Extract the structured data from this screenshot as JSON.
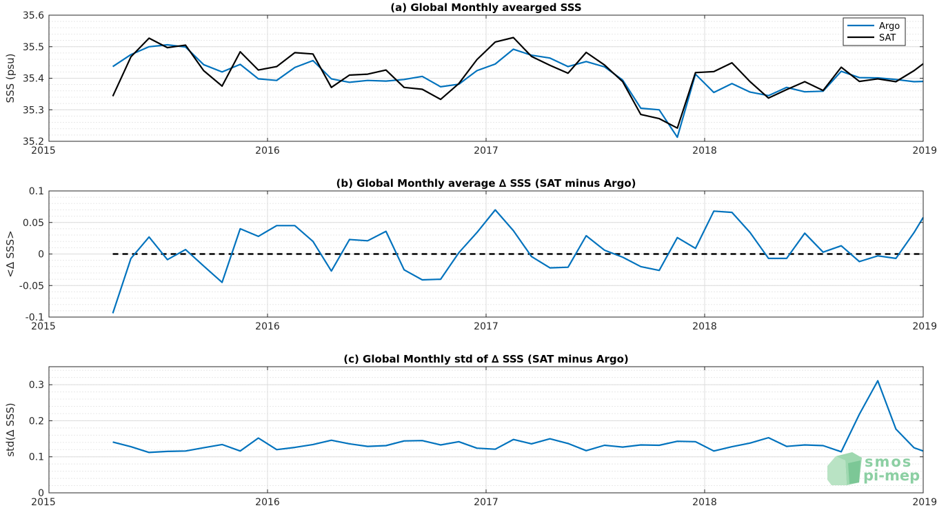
{
  "chart_data": [
    {
      "type": "line",
      "title": "(a) Global Monthly avearged SSS",
      "xlabel": "",
      "ylabel": "SSS (psu)",
      "xlim": [
        2015,
        2019
      ],
      "ylim": [
        35.2,
        35.6
      ],
      "xticks": [
        2015,
        2016,
        2017,
        2018,
        2019
      ],
      "xticklabels": [
        "2015",
        "2016",
        "2017",
        "2018",
        "2019"
      ],
      "yticks": [
        35.2,
        35.3,
        35.4,
        35.5,
        35.6
      ],
      "yticklabels": [
        "35.2",
        "35.3",
        "35.4",
        "35.5",
        "35.6"
      ],
      "grid": true,
      "legend_position": "top-right",
      "x": [
        2015.292,
        2015.375,
        2015.458,
        2015.542,
        2015.625,
        2015.708,
        2015.792,
        2015.875,
        2015.958,
        2016.042,
        2016.125,
        2016.208,
        2016.292,
        2016.375,
        2016.458,
        2016.542,
        2016.625,
        2016.708,
        2016.792,
        2016.875,
        2016.958,
        2017.042,
        2017.125,
        2017.208,
        2017.292,
        2017.375,
        2017.458,
        2017.542,
        2017.625,
        2017.708,
        2017.792,
        2017.875,
        2017.958,
        2018.042,
        2018.125,
        2018.208,
        2018.292,
        2018.375,
        2018.458,
        2018.542,
        2018.625,
        2018.708,
        2018.792,
        2018.875,
        2018.958,
        2019.0
      ],
      "series": [
        {
          "name": "Argo",
          "color": "#0072bd",
          "values": [
            35.437,
            35.475,
            35.5,
            35.506,
            35.499,
            35.443,
            35.42,
            35.444,
            35.398,
            35.393,
            35.434,
            35.456,
            35.398,
            35.387,
            35.393,
            35.391,
            35.396,
            35.406,
            35.373,
            35.381,
            35.424,
            35.445,
            35.492,
            35.473,
            35.464,
            35.437,
            35.453,
            35.436,
            35.394,
            35.305,
            35.3,
            35.213,
            35.413,
            35.355,
            35.383,
            35.356,
            35.345,
            35.371,
            35.357,
            35.359,
            35.422,
            35.402,
            35.401,
            35.396,
            35.389,
            35.39
          ]
        },
        {
          "name": "SAT",
          "color": "#000000",
          "values": [
            35.343,
            35.468,
            35.527,
            35.497,
            35.505,
            35.424,
            35.375,
            35.484,
            35.426,
            35.437,
            35.481,
            35.477,
            35.371,
            35.41,
            35.413,
            35.426,
            35.371,
            35.365,
            35.333,
            35.383,
            35.459,
            35.515,
            35.529,
            35.469,
            35.441,
            35.416,
            35.482,
            35.442,
            35.389,
            35.285,
            35.272,
            35.242,
            35.418,
            35.421,
            35.449,
            35.389,
            35.337,
            35.364,
            35.389,
            35.361,
            35.435,
            35.39,
            35.398,
            35.389,
            35.424,
            35.446
          ]
        }
      ]
    },
    {
      "type": "line",
      "title": "(b) Global Monthly average ∆ SSS (SAT minus Argo)",
      "xlabel": "",
      "ylabel": "<∆ SSS>",
      "xlim": [
        2015,
        2019
      ],
      "ylim": [
        -0.1,
        0.1
      ],
      "xticks": [
        2015,
        2016,
        2017,
        2018,
        2019
      ],
      "xticklabels": [
        "2015",
        "2016",
        "2017",
        "2018",
        "2019"
      ],
      "yticks": [
        -0.1,
        -0.05,
        0,
        0.05,
        0.1
      ],
      "yticklabels": [
        "-0.1",
        "-0.05",
        "0",
        "0.05",
        "0.1"
      ],
      "grid": true,
      "zero_line": true,
      "x": [
        2015.292,
        2015.375,
        2015.458,
        2015.542,
        2015.625,
        2015.708,
        2015.792,
        2015.875,
        2015.958,
        2016.042,
        2016.125,
        2016.208,
        2016.292,
        2016.375,
        2016.458,
        2016.542,
        2016.625,
        2016.708,
        2016.792,
        2016.875,
        2016.958,
        2017.042,
        2017.125,
        2017.208,
        2017.292,
        2017.375,
        2017.458,
        2017.542,
        2017.625,
        2017.708,
        2017.792,
        2017.875,
        2017.958,
        2018.042,
        2018.125,
        2018.208,
        2018.292,
        2018.375,
        2018.458,
        2018.542,
        2018.625,
        2018.708,
        2018.792,
        2018.875,
        2018.958,
        2019.0
      ],
      "series": [
        {
          "name": "",
          "color": "#0072bd",
          "values": [
            -0.094,
            -0.007,
            0.027,
            -0.009,
            0.007,
            -0.019,
            -0.045,
            0.04,
            0.028,
            0.045,
            0.045,
            0.02,
            -0.027,
            0.023,
            0.021,
            0.036,
            -0.025,
            -0.041,
            -0.04,
            0.002,
            0.034,
            0.07,
            0.037,
            -0.004,
            -0.022,
            -0.021,
            0.029,
            0.006,
            -0.005,
            -0.02,
            -0.026,
            0.026,
            0.009,
            0.068,
            0.066,
            0.034,
            -0.007,
            -0.007,
            0.033,
            0.003,
            0.013,
            -0.012,
            -0.003,
            -0.007,
            0.034,
            0.058
          ]
        }
      ]
    },
    {
      "type": "line",
      "title": "(c) Global Monthly std of ∆ SSS (SAT minus Argo)",
      "xlabel": "",
      "ylabel": "std(∆ SSS)",
      "xlim": [
        2015,
        2019
      ],
      "ylim": [
        0,
        0.35
      ],
      "xticks": [
        2015,
        2016,
        2017,
        2018,
        2019
      ],
      "xticklabels": [
        "2015",
        "2016",
        "2017",
        "2018",
        "2019"
      ],
      "yticks": [
        0,
        0.1,
        0.2,
        0.3
      ],
      "yticklabels": [
        "0",
        "0.1",
        "0.2",
        "0.3"
      ],
      "grid": true,
      "x": [
        2015.292,
        2015.375,
        2015.458,
        2015.542,
        2015.625,
        2015.708,
        2015.792,
        2015.875,
        2015.958,
        2016.042,
        2016.125,
        2016.208,
        2016.292,
        2016.375,
        2016.458,
        2016.542,
        2016.625,
        2016.708,
        2016.792,
        2016.875,
        2016.958,
        2017.042,
        2017.125,
        2017.208,
        2017.292,
        2017.375,
        2017.458,
        2017.542,
        2017.625,
        2017.708,
        2017.792,
        2017.875,
        2017.958,
        2018.042,
        2018.125,
        2018.208,
        2018.292,
        2018.375,
        2018.458,
        2018.542,
        2018.625,
        2018.708,
        2018.792,
        2018.875,
        2018.958,
        2019.0
      ],
      "series": [
        {
          "name": "",
          "color": "#0072bd",
          "values": [
            0.141,
            0.128,
            0.112,
            0.115,
            0.116,
            0.125,
            0.134,
            0.116,
            0.152,
            0.12,
            0.126,
            0.134,
            0.146,
            0.136,
            0.129,
            0.131,
            0.144,
            0.145,
            0.133,
            0.142,
            0.124,
            0.121,
            0.148,
            0.136,
            0.15,
            0.137,
            0.117,
            0.132,
            0.127,
            0.133,
            0.132,
            0.143,
            0.142,
            0.116,
            0.128,
            0.138,
            0.153,
            0.129,
            0.133,
            0.131,
            0.114,
            0.218,
            0.311,
            0.177,
            0.125,
            0.116
          ]
        }
      ]
    }
  ],
  "logo": {
    "line1": "smos",
    "line2": "pi-mep",
    "color": "#8ccfa3"
  }
}
